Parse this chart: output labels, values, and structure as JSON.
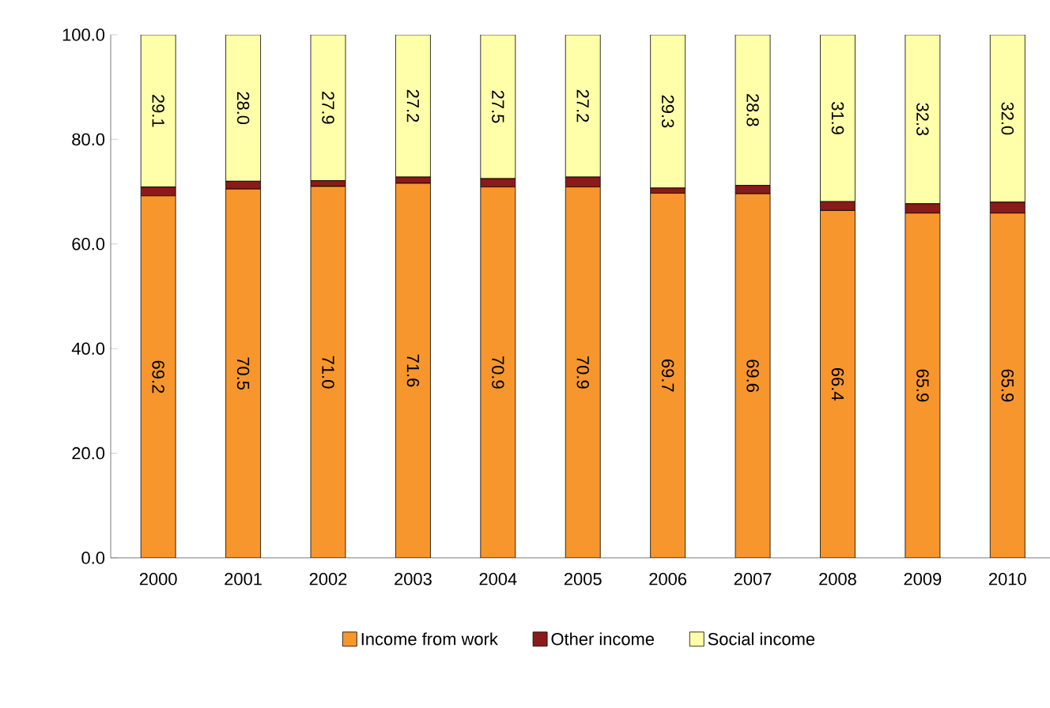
{
  "chart_data": {
    "type": "bar",
    "stacked": true,
    "categories": [
      "2000",
      "2001",
      "2002",
      "2003",
      "2004",
      "2005",
      "2006",
      "2007",
      "2008",
      "2009",
      "2010"
    ],
    "series": [
      {
        "name": "Income from work",
        "color": "#f7962d",
        "values": [
          69.2,
          70.5,
          71.0,
          71.6,
          70.9,
          70.9,
          69.7,
          69.6,
          66.4,
          65.9,
          65.9
        ],
        "value_labels": [
          "69.2",
          "70.5",
          "71.0",
          "71.6",
          "70.9",
          "70.9",
          "69.7",
          "69.6",
          "66.4",
          "65.9",
          "65.9"
        ]
      },
      {
        "name": "Other income",
        "color": "#8b1a1a",
        "values": [
          1.7,
          1.5,
          1.1,
          1.2,
          1.6,
          1.9,
          1.0,
          1.6,
          1.7,
          1.8,
          2.1
        ]
      },
      {
        "name": "Social income",
        "color": "#ffffaa",
        "values": [
          29.1,
          28.0,
          27.9,
          27.2,
          27.5,
          27.2,
          29.3,
          28.8,
          31.9,
          32.3,
          32.0
        ],
        "value_labels": [
          "29.1",
          "28.0",
          "27.9",
          "27.2",
          "27.5",
          "27.2",
          "29.3",
          "28.8",
          "31.9",
          "32.3",
          "32.0"
        ]
      }
    ],
    "ylim": [
      0,
      100
    ],
    "yticks": [
      {
        "value": 0,
        "label": "0.0"
      },
      {
        "value": 20,
        "label": "20.0"
      },
      {
        "value": 40,
        "label": "40.0"
      },
      {
        "value": 60,
        "label": "60.0"
      },
      {
        "value": 80,
        "label": "80.0"
      },
      {
        "value": 100,
        "label": "100.0"
      }
    ],
    "legend": "bottom"
  }
}
